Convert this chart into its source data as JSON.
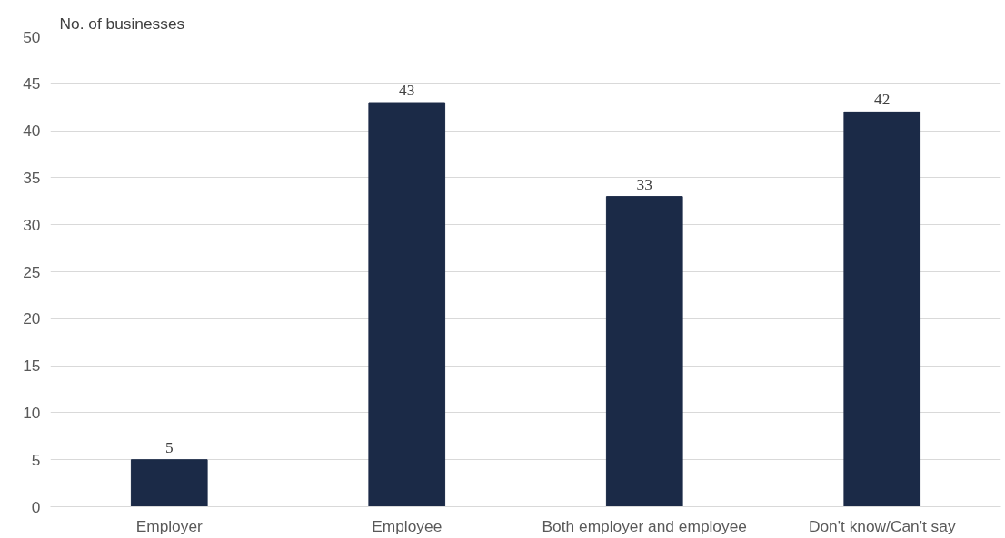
{
  "chart_data": {
    "type": "bar",
    "ylabel": "No. of businesses",
    "categories": [
      "Employer",
      "Employee",
      "Both employer and employee",
      "Don't know/Can't say"
    ],
    "values": [
      5,
      43,
      33,
      42
    ],
    "color": "#1b2a47",
    "ylim": [
      0,
      50
    ],
    "yticks": [
      0,
      5,
      10,
      15,
      20,
      25,
      30,
      35,
      40,
      45,
      50
    ],
    "grid": "y",
    "data_labels": true
  }
}
